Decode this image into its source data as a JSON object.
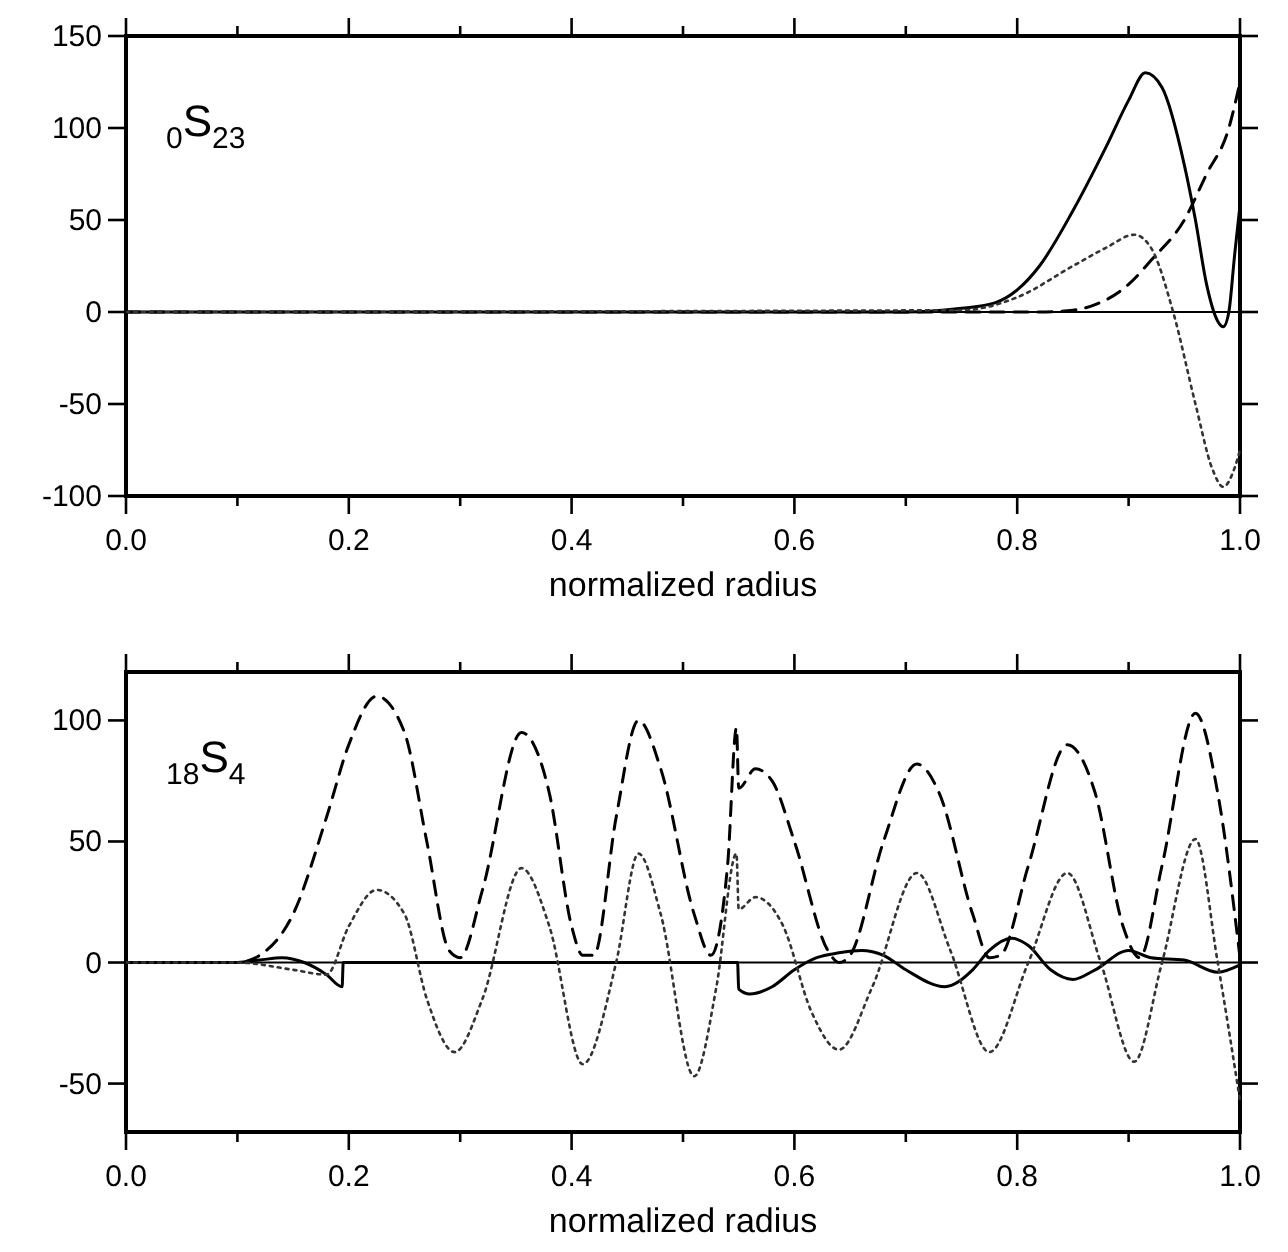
{
  "chart_data": [
    {
      "type": "line",
      "xlabel": "normalized radius",
      "annotations": [
        "$_{0}$S$_{23}$"
      ],
      "xlim": [
        0,
        1
      ],
      "ylim": [
        -100,
        150
      ],
      "xticks": [
        {
          "value": 0,
          "label": "0.0"
        },
        {
          "value": 0.1,
          "label": null
        },
        {
          "value": 0.2,
          "label": "0.2"
        },
        {
          "value": 0.3,
          "label": null
        },
        {
          "value": 0.4,
          "label": "0.4"
        },
        {
          "value": 0.5,
          "label": null
        },
        {
          "value": 0.6,
          "label": "0.6"
        },
        {
          "value": 0.7,
          "label": null
        },
        {
          "value": 0.8,
          "label": "0.8"
        },
        {
          "value": 0.9,
          "label": null
        },
        {
          "value": 1,
          "label": "1.0"
        }
      ],
      "yticks": [
        -100,
        -50,
        0,
        50,
        100,
        150
      ],
      "ref_lines": [
        {
          "axis": "y",
          "value": 0,
          "color": "#000000"
        }
      ],
      "series": [
        {
          "color": "#000000",
          "line_style": "solid",
          "x": [
            0,
            0.7,
            0.75,
            0.78,
            0.8,
            0.82,
            0.85,
            0.88,
            0.9,
            0.915,
            0.93,
            0.95,
            0.96,
            0.97,
            0.98,
            0.985,
            0.99,
            0.995,
            1.0
          ],
          "values": [
            0,
            0,
            2,
            5,
            12,
            25,
            55,
            90,
            115,
            130,
            122,
            80,
            50,
            15,
            -5,
            -8,
            0,
            30,
            58
          ]
        },
        {
          "color": "#000000",
          "line_style": "dashed",
          "x": [
            0,
            0.82,
            0.85,
            0.87,
            0.9,
            0.92,
            0.95,
            0.97,
            0.99,
            1.0
          ],
          "values": [
            0,
            0,
            1,
            4,
            15,
            28,
            50,
            75,
            100,
            125
          ]
        },
        {
          "color": "#333333",
          "line_style": "dotted",
          "x": [
            0,
            0.75,
            0.8,
            0.85,
            0.88,
            0.905,
            0.92,
            0.94,
            0.96,
            0.975,
            0.985,
            0.995,
            1.0
          ],
          "values": [
            0,
            1,
            8,
            25,
            35,
            42,
            35,
            0,
            -50,
            -85,
            -95,
            -85,
            -75
          ]
        }
      ]
    },
    {
      "type": "line",
      "xlabel": "normalized radius",
      "annotations": [
        "$_{18}$S$_{4}$"
      ],
      "xlim": [
        0,
        1
      ],
      "ylim": [
        -70,
        120
      ],
      "xticks": [
        {
          "value": 0,
          "label": "0.0"
        },
        {
          "value": 0.1,
          "label": null
        },
        {
          "value": 0.2,
          "label": "0.2"
        },
        {
          "value": 0.3,
          "label": null
        },
        {
          "value": 0.4,
          "label": "0.4"
        },
        {
          "value": 0.5,
          "label": null
        },
        {
          "value": 0.6,
          "label": "0.6"
        },
        {
          "value": 0.7,
          "label": null
        },
        {
          "value": 0.8,
          "label": "0.8"
        },
        {
          "value": 0.9,
          "label": null
        },
        {
          "value": 1,
          "label": "1.0"
        }
      ],
      "yticks": [
        -50,
        0,
        50,
        100
      ],
      "ref_lines": [
        {
          "axis": "y",
          "value": 0,
          "color": "#000000"
        }
      ],
      "series": [
        {
          "color": "#000000",
          "line_style": "solid",
          "x": [
            0,
            0.1,
            0.12,
            0.14,
            0.16,
            0.18,
            0.194,
            0.195,
            0.549,
            0.55,
            0.56,
            0.58,
            0.6,
            0.62,
            0.64,
            0.66,
            0.68,
            0.7,
            0.735,
            0.76,
            0.775,
            0.795,
            0.81,
            0.83,
            0.85,
            0.87,
            0.9,
            0.92,
            0.95,
            0.98,
            1.0
          ],
          "values": [
            0,
            0,
            1,
            2,
            0,
            -5,
            -10,
            0,
            0,
            -11,
            -13,
            -10,
            -3,
            2,
            4,
            5,
            3,
            -3,
            -10,
            -3,
            5,
            10,
            7,
            -3,
            -7,
            -3,
            5,
            2,
            1,
            -4,
            -1
          ]
        },
        {
          "color": "#000000",
          "line_style": "dashed",
          "x": [
            0,
            0.1,
            0.12,
            0.15,
            0.18,
            0.2,
            0.225,
            0.25,
            0.27,
            0.29,
            0.3,
            0.32,
            0.355,
            0.38,
            0.4,
            0.41,
            0.42,
            0.44,
            0.46,
            0.48,
            0.51,
            0.525,
            0.54,
            0.548,
            0.55,
            0.565,
            0.58,
            0.6,
            0.63,
            0.64,
            0.65,
            0.68,
            0.71,
            0.73,
            0.76,
            0.775,
            0.785,
            0.81,
            0.845,
            0.87,
            0.895,
            0.91,
            0.93,
            0.96,
            0.98,
            1.0
          ],
          "values": [
            0,
            0,
            3,
            20,
            60,
            90,
            110,
            95,
            50,
            5,
            2,
            30,
            95,
            70,
            15,
            3,
            3,
            60,
            100,
            80,
            20,
            3,
            40,
            97,
            72,
            80,
            75,
            50,
            5,
            0,
            3,
            50,
            82,
            70,
            20,
            2,
            3,
            40,
            90,
            70,
            15,
            2,
            40,
            103,
            70,
            2
          ]
        },
        {
          "color": "#333333",
          "line_style": "dotted",
          "x": [
            0,
            0.1,
            0.15,
            0.18,
            0.2,
            0.225,
            0.25,
            0.27,
            0.295,
            0.32,
            0.355,
            0.38,
            0.41,
            0.44,
            0.46,
            0.48,
            0.51,
            0.53,
            0.548,
            0.55,
            0.565,
            0.59,
            0.615,
            0.64,
            0.67,
            0.71,
            0.74,
            0.775,
            0.81,
            0.845,
            0.875,
            0.905,
            0.93,
            0.96,
            0.98,
            1.0
          ],
          "values": [
            0,
            0,
            -3,
            -5,
            15,
            30,
            20,
            -15,
            -37,
            -15,
            39,
            15,
            -42,
            0,
            45,
            20,
            -47,
            -10,
            45,
            22,
            27,
            15,
            -20,
            -36,
            -10,
            37,
            5,
            -37,
            0,
            37,
            0,
            -41,
            0,
            51,
            0,
            -57
          ]
        }
      ]
    }
  ]
}
